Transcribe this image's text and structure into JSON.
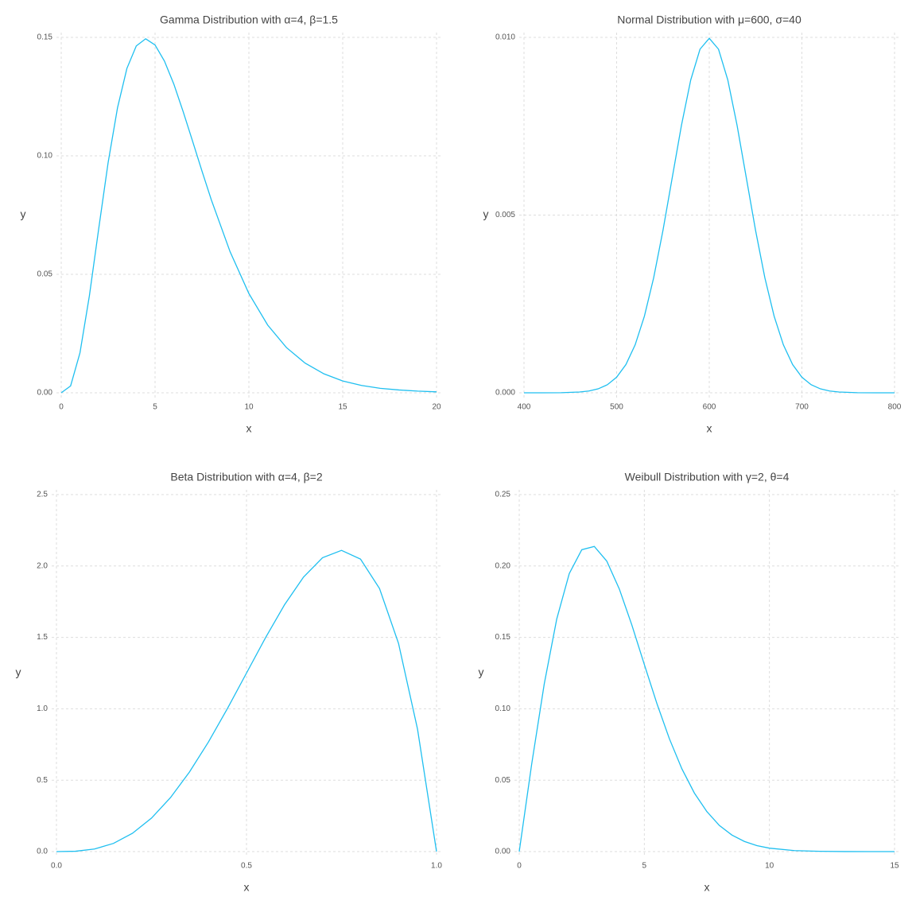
{
  "chart_data": [
    {
      "type": "line",
      "title": "Gamma Distribution with α=4, β=1.5",
      "x_label": "x",
      "y_label": "y",
      "color": "#1fbff0",
      "grid": true,
      "x": [
        0,
        0.5,
        1,
        1.5,
        2,
        2.5,
        3,
        3.5,
        4,
        4.5,
        5,
        5.5,
        6,
        6.5,
        7,
        7.5,
        8,
        9,
        10,
        11,
        12,
        13,
        14,
        15,
        16,
        17,
        18,
        19,
        20
      ],
      "values": [
        0,
        0.0029,
        0.0169,
        0.0409,
        0.0694,
        0.0972,
        0.1203,
        0.1369,
        0.1464,
        0.1494,
        0.1468,
        0.14,
        0.1303,
        0.1186,
        0.1062,
        0.0936,
        0.0814,
        0.0595,
        0.0419,
        0.0286,
        0.0191,
        0.0125,
        0.008,
        0.005,
        0.0031,
        0.0019,
        0.0012,
        0.0007,
        0.0004
      ],
      "xlim": [
        0,
        20
      ],
      "xticks": [
        0,
        5,
        10,
        15,
        20
      ],
      "ylim": [
        0,
        0.15
      ],
      "yticks": [
        {
          "value": 0,
          "label": "0.00"
        },
        {
          "value": 0.05,
          "label": "0.05"
        },
        {
          "value": 0.1,
          "label": "0.10"
        },
        {
          "value": 0.15,
          "label": "0.15"
        }
      ]
    },
    {
      "type": "line",
      "title": "Normal Distribution with μ=600, σ=40",
      "x_label": "x",
      "y_label": "y",
      "color": "#1fbff0",
      "grid": true,
      "x": [
        400,
        420,
        440,
        460,
        470,
        480,
        490,
        500,
        510,
        520,
        530,
        540,
        550,
        560,
        570,
        580,
        590,
        600,
        610,
        620,
        630,
        640,
        650,
        660,
        670,
        680,
        690,
        700,
        710,
        720,
        730,
        740,
        760,
        780,
        800
      ],
      "values": [
        0,
        4e-07,
        3.3e-06,
        2.18e-05,
        5.07e-05,
        0.000111,
        0.000227,
        0.000438,
        0.000794,
        0.00135,
        0.002157,
        0.003238,
        0.004566,
        0.006049,
        0.007528,
        0.008802,
        0.009667,
        0.009974,
        0.009667,
        0.008802,
        0.007528,
        0.006049,
        0.004566,
        0.003238,
        0.002157,
        0.00135,
        0.000794,
        0.000438,
        0.000227,
        0.000111,
        5.07e-05,
        2.18e-05,
        3.3e-06,
        4e-07,
        0
      ],
      "xlim": [
        400,
        800
      ],
      "xticks": [
        400,
        500,
        600,
        700,
        800
      ],
      "ylim": [
        0,
        0.01
      ],
      "yticks": [
        {
          "value": 0,
          "label": "0.000"
        },
        {
          "value": 0.005,
          "label": "0.005"
        },
        {
          "value": 0.01,
          "label": "0.010"
        }
      ]
    },
    {
      "type": "line",
      "title": "Beta Distribution with α=4, β=2",
      "x_label": "x",
      "y_label": "y",
      "color": "#1fbff0",
      "grid": true,
      "x": [
        0,
        0.05,
        0.1,
        0.15,
        0.2,
        0.25,
        0.3,
        0.35,
        0.4,
        0.45,
        0.5,
        0.55,
        0.6,
        0.65,
        0.7,
        0.75,
        0.8,
        0.85,
        0.9,
        0.95,
        1
      ],
      "values": [
        0,
        0.0024,
        0.018,
        0.0574,
        0.128,
        0.2344,
        0.378,
        0.5574,
        0.768,
        1.0024,
        1.25,
        1.4974,
        1.728,
        1.9224,
        2.058,
        2.1094,
        2.048,
        1.8424,
        1.458,
        0.8574,
        0
      ],
      "xlim": [
        0,
        1
      ],
      "xticks": [
        {
          "value": 0,
          "label": "0.0"
        },
        {
          "value": 0.5,
          "label": "0.5"
        },
        {
          "value": 1,
          "label": "1.0"
        }
      ],
      "ylim": [
        0,
        2.5
      ],
      "yticks": [
        {
          "value": 0,
          "label": "0.0"
        },
        {
          "value": 0.5,
          "label": "0.5"
        },
        {
          "value": 1,
          "label": "1.0"
        },
        {
          "value": 1.5,
          "label": "1.5"
        },
        {
          "value": 2,
          "label": "2.0"
        },
        {
          "value": 2.5,
          "label": "2.5"
        }
      ]
    },
    {
      "type": "line",
      "title": "Weibull Distribution with γ=2, θ=4",
      "x_label": "x",
      "y_label": "y",
      "color": "#1fbff0",
      "grid": true,
      "x": [
        0,
        0.5,
        1,
        1.5,
        2,
        2.5,
        3,
        3.5,
        4,
        4.5,
        5,
        5.5,
        6,
        6.5,
        7,
        7.5,
        8,
        8.5,
        9,
        9.5,
        10,
        11,
        12,
        13,
        14,
        15
      ],
      "values": [
        0,
        0.0615,
        0.1174,
        0.1629,
        0.1947,
        0.2114,
        0.2137,
        0.2034,
        0.1839,
        0.1587,
        0.131,
        0.1038,
        0.0791,
        0.058,
        0.041,
        0.028,
        0.0183,
        0.0116,
        0.0071,
        0.0042,
        0.0024,
        0.0007,
        0.0002,
        4e-05,
        8.4e-06,
        1.5e-06
      ],
      "xlim": [
        0,
        15
      ],
      "xticks": [
        0,
        5,
        10,
        15
      ],
      "ylim": [
        0,
        0.25
      ],
      "yticks": [
        {
          "value": 0,
          "label": "0.00"
        },
        {
          "value": 0.05,
          "label": "0.05"
        },
        {
          "value": 0.1,
          "label": "0.10"
        },
        {
          "value": 0.15,
          "label": "0.15"
        },
        {
          "value": 0.2,
          "label": "0.20"
        },
        {
          "value": 0.25,
          "label": "0.25"
        }
      ]
    }
  ]
}
